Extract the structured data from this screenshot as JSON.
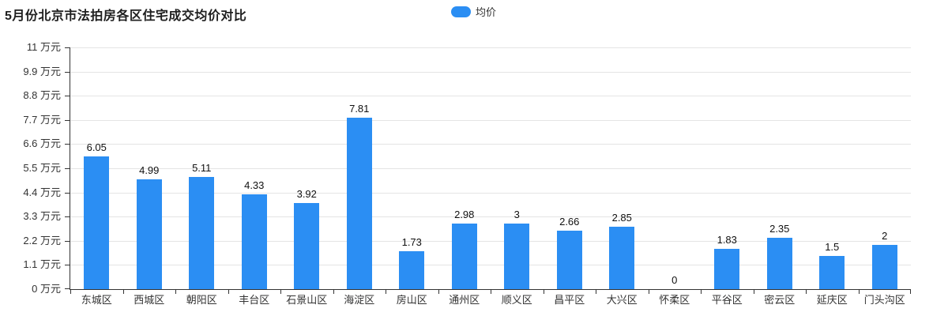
{
  "title": "5月份北京市法拍房各区住宅成交均价对比",
  "legend": {
    "label": "均价",
    "color": "#2b8ef3"
  },
  "chart_data": {
    "type": "bar",
    "title": "5月份北京市法拍房各区住宅成交均价对比",
    "series_name": "均价",
    "categories": [
      "东城区",
      "西城区",
      "朝阳区",
      "丰台区",
      "石景山区",
      "海淀区",
      "房山区",
      "通州区",
      "顺义区",
      "昌平区",
      "大兴区",
      "怀柔区",
      "平谷区",
      "密云区",
      "延庆区",
      "门头沟区"
    ],
    "values": [
      6.05,
      4.99,
      5.11,
      4.33,
      3.92,
      7.81,
      1.73,
      2.98,
      3,
      2.66,
      2.85,
      0,
      1.83,
      2.35,
      1.5,
      2
    ],
    "xlabel": "",
    "ylabel": "万元",
    "ylim": [
      0,
      11
    ],
    "yticks": [
      0,
      1.1,
      2.2,
      3.3,
      4.4,
      5.5,
      6.6,
      7.7,
      8.8,
      9.9,
      11
    ],
    "ytick_labels": [
      "0 万元",
      "1.1 万元",
      "2.2 万元",
      "3.3 万元",
      "4.4 万元",
      "5.5 万元",
      "6.6 万元",
      "7.7 万元",
      "8.8 万元",
      "9.9 万元",
      "11 万元"
    ],
    "grid": true,
    "legend_position": "top-center",
    "bar_color": "#2b8ef3",
    "value_labels_shown": true
  }
}
